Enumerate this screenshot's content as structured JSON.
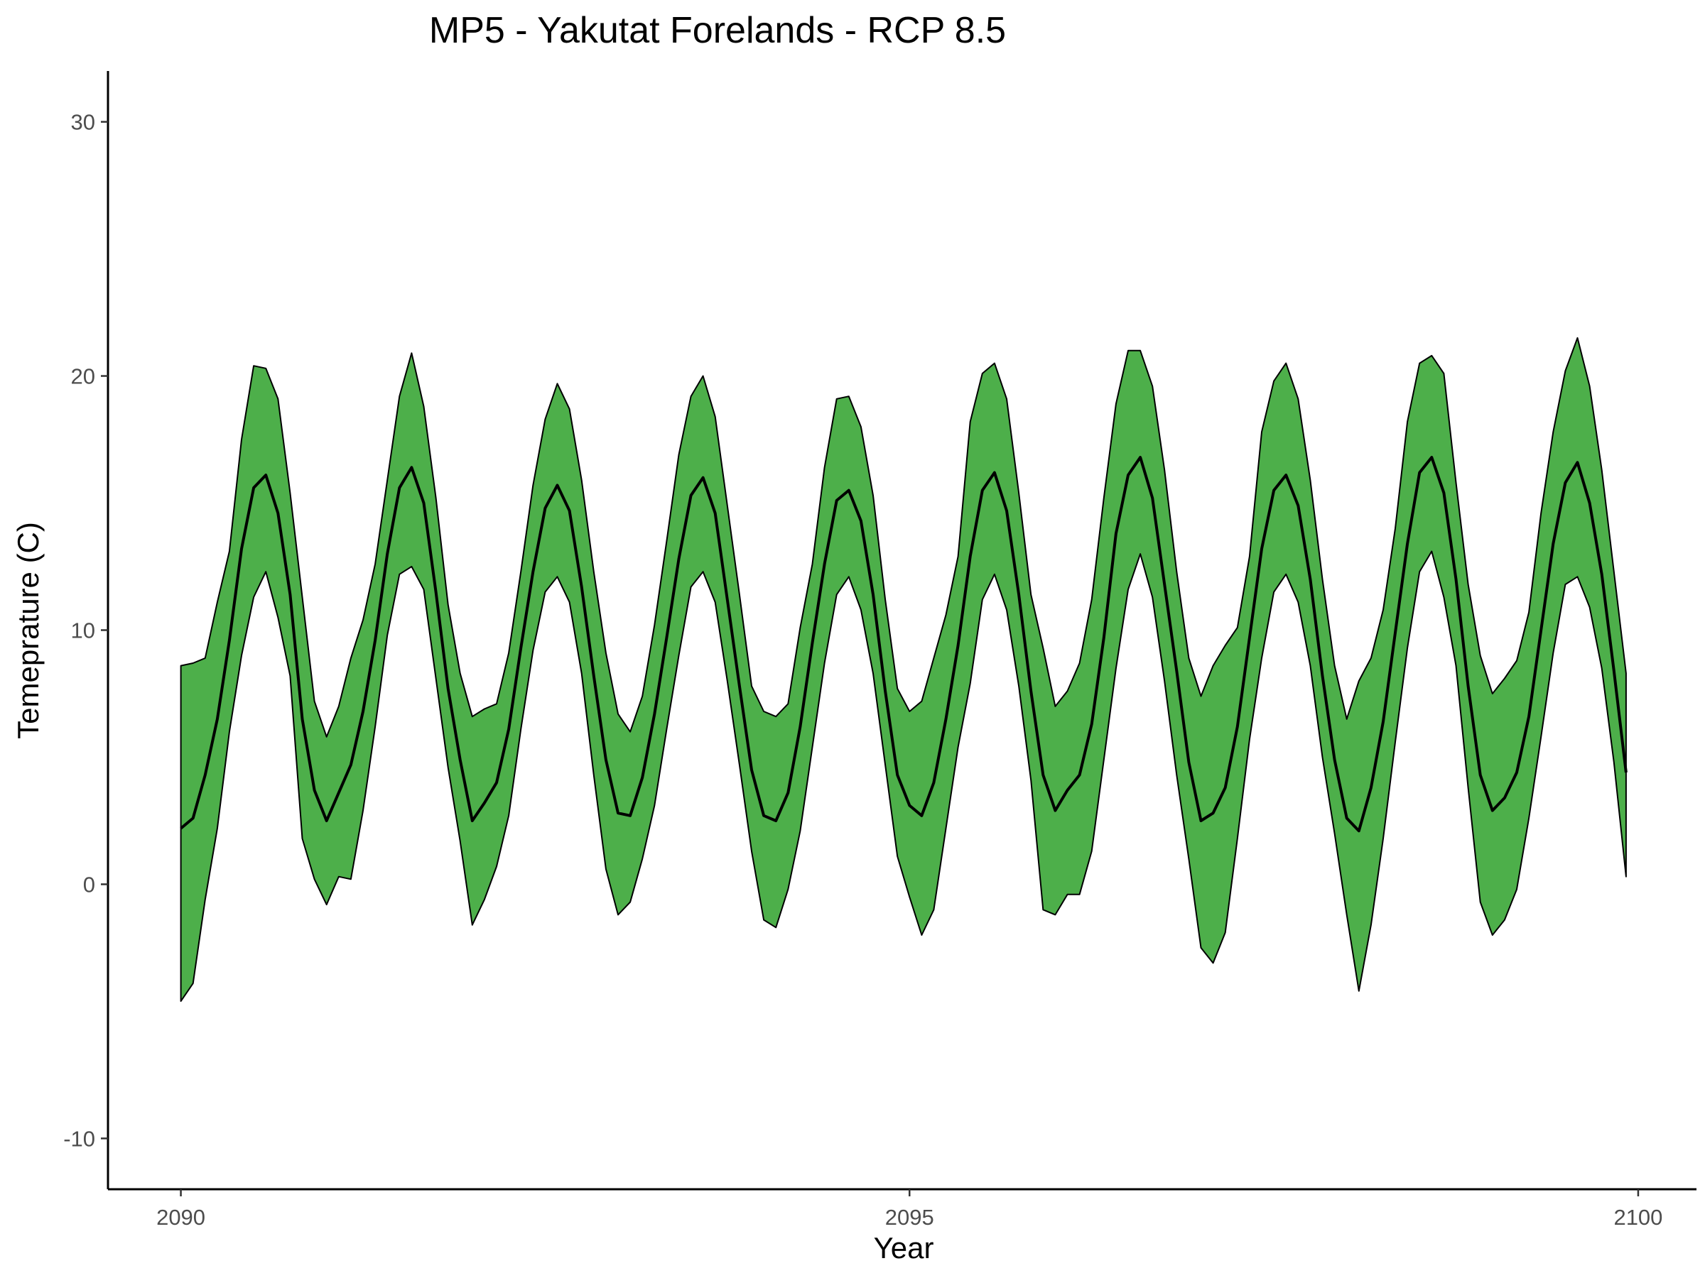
{
  "chart_data": {
    "type": "area",
    "title": "MP5 - Yakutat Forelands - RCP 8.5",
    "xlabel": "Year",
    "ylabel": "Temeprature (C)",
    "xlim": [
      2089.5,
      2100.4
    ],
    "ylim": [
      -12,
      32
    ],
    "xticks": [
      2090,
      2095,
      2100
    ],
    "yticks": [
      -10,
      0,
      10,
      20,
      30
    ],
    "xtick_labels": [
      "2090",
      "2095",
      "2100"
    ],
    "ytick_labels": [
      "-10",
      "0",
      "10",
      "20",
      "30"
    ],
    "x_start": 2090,
    "x_step_months": 1,
    "series": [
      {
        "role": "upper bound",
        "values": [
          8.6,
          8.7,
          8.9,
          11.1,
          13.1,
          17.5,
          20.4,
          20.3,
          19.1,
          15.4,
          11.3,
          7.2,
          5.8,
          7.0,
          8.9,
          10.4,
          12.6,
          15.9,
          19.2,
          20.9,
          18.8,
          15.2,
          11.0,
          8.3,
          6.6,
          6.9,
          7.1,
          9.1,
          12.3,
          15.7,
          18.3,
          19.7,
          18.7,
          15.9,
          12.3,
          9.1,
          6.7,
          6.0,
          7.4,
          10.2,
          13.5,
          16.9,
          19.2,
          20.0,
          18.4,
          14.9,
          11.4,
          7.8,
          6.8,
          6.6,
          7.1,
          10.1,
          12.6,
          16.4,
          19.1,
          19.2,
          18.0,
          15.3,
          11.2,
          7.7,
          6.8,
          7.2,
          8.9,
          10.6,
          12.9,
          18.2,
          20.1,
          20.5,
          19.1,
          15.4,
          11.4,
          9.3,
          7.0,
          7.6,
          8.7,
          11.2,
          15.2,
          18.9,
          21.0,
          21.0,
          19.6,
          16.3,
          12.3,
          8.9,
          7.4,
          8.6,
          9.4,
          10.1,
          12.9,
          17.8,
          19.8,
          20.5,
          19.1,
          15.9,
          12.0,
          8.6,
          6.5,
          8.0,
          8.9,
          10.8,
          14.0,
          18.2,
          20.5,
          20.8,
          20.1,
          15.8,
          11.8,
          9.0,
          7.5,
          8.1,
          8.8,
          10.7,
          14.6,
          17.8,
          20.2,
          21.5,
          19.6,
          16.3,
          12.3,
          8.3
        ]
      },
      {
        "role": "mean",
        "values": [
          2.2,
          2.6,
          4.3,
          6.5,
          9.6,
          13.2,
          15.6,
          16.1,
          14.6,
          11.4,
          6.5,
          3.7,
          2.5,
          3.6,
          4.7,
          6.8,
          9.6,
          13.0,
          15.6,
          16.4,
          15.0,
          11.5,
          7.7,
          4.9,
          2.5,
          3.2,
          4.0,
          6.1,
          9.3,
          12.3,
          14.8,
          15.7,
          14.7,
          11.7,
          8.2,
          4.9,
          2.8,
          2.7,
          4.2,
          6.7,
          9.7,
          12.8,
          15.3,
          16.0,
          14.6,
          11.2,
          7.8,
          4.5,
          2.7,
          2.5,
          3.6,
          6.2,
          9.5,
          12.6,
          15.1,
          15.5,
          14.3,
          11.4,
          7.6,
          4.3,
          3.1,
          2.7,
          4.0,
          6.5,
          9.4,
          12.9,
          15.5,
          16.2,
          14.7,
          11.4,
          7.6,
          4.3,
          2.9,
          3.7,
          4.3,
          6.3,
          9.7,
          13.8,
          16.1,
          16.8,
          15.2,
          11.8,
          8.4,
          4.8,
          2.5,
          2.8,
          3.8,
          6.2,
          9.7,
          13.2,
          15.5,
          16.1,
          14.9,
          12.0,
          8.2,
          4.9,
          2.6,
          2.1,
          3.8,
          6.4,
          9.9,
          13.4,
          16.2,
          16.8,
          15.4,
          12.0,
          7.8,
          4.3,
          2.9,
          3.4,
          4.4,
          6.6,
          10.0,
          13.4,
          15.8,
          16.6,
          15.0,
          12.2,
          8.4,
          4.4
        ]
      },
      {
        "role": "lower bound",
        "values": [
          -4.6,
          -3.9,
          -0.6,
          2.2,
          6.0,
          9.0,
          11.3,
          12.3,
          10.5,
          8.2,
          1.8,
          0.2,
          -0.8,
          0.3,
          0.2,
          2.9,
          6.2,
          9.8,
          12.2,
          12.5,
          11.6,
          8.1,
          4.6,
          1.7,
          -1.6,
          -0.6,
          0.7,
          2.7,
          6.1,
          9.2,
          11.5,
          12.1,
          11.1,
          8.3,
          4.3,
          0.6,
          -1.2,
          -0.7,
          1.0,
          3.1,
          6.1,
          9.0,
          11.7,
          12.3,
          11.1,
          8.0,
          4.7,
          1.3,
          -1.4,
          -1.7,
          -0.2,
          2.1,
          5.4,
          8.7,
          11.4,
          12.1,
          10.8,
          8.3,
          4.7,
          1.1,
          -0.5,
          -2.0,
          -1.0,
          2.2,
          5.4,
          7.9,
          11.2,
          12.2,
          10.8,
          7.8,
          4.1,
          -1.0,
          -1.2,
          -0.4,
          -0.4,
          1.3,
          4.9,
          8.5,
          11.6,
          13.0,
          11.3,
          8.0,
          4.3,
          1.0,
          -2.5,
          -3.1,
          -1.9,
          1.8,
          5.7,
          8.9,
          11.5,
          12.2,
          11.1,
          8.6,
          5.0,
          2.0,
          -1.2,
          -4.2,
          -1.6,
          1.8,
          5.6,
          9.3,
          12.3,
          13.1,
          11.3,
          8.6,
          3.8,
          -0.7,
          -2.0,
          -1.4,
          -0.2,
          2.6,
          5.8,
          9.1,
          11.8,
          12.1,
          10.9,
          8.5,
          4.8,
          0.3
        ]
      }
    ],
    "colors": {
      "band": "#4daf4a",
      "line": "#000000",
      "axis": "#000000",
      "tick_label": "#4d4d4d"
    }
  }
}
